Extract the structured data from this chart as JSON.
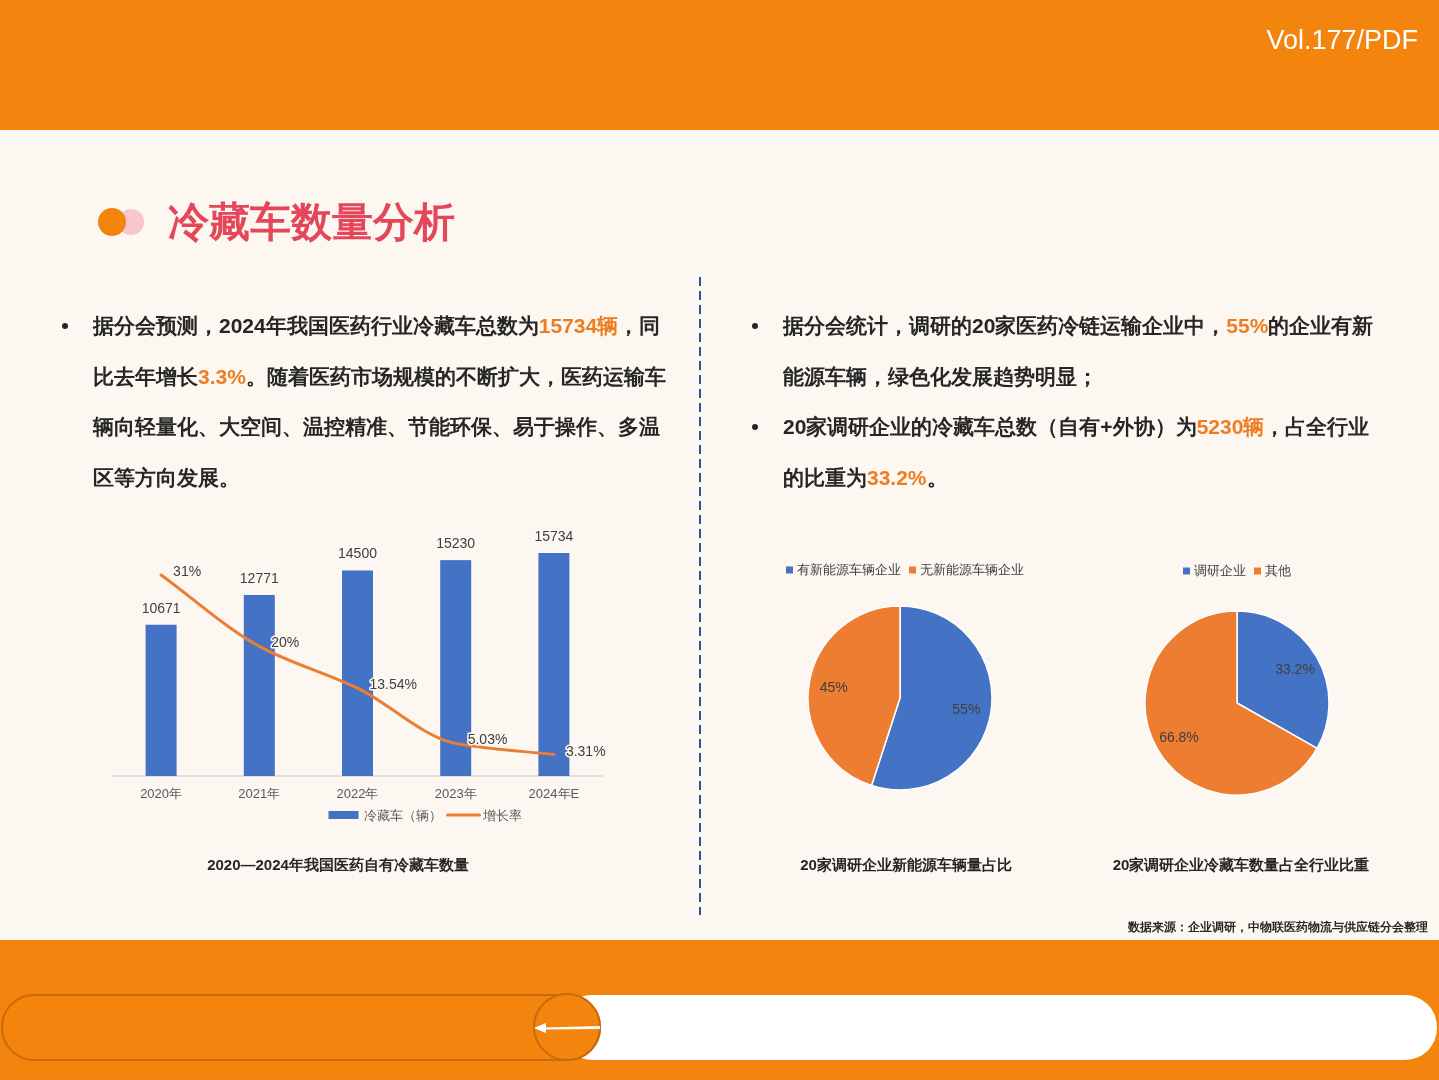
{
  "chart_data": [
    {
      "type": "other",
      "title": "冷藏车数量分析",
      "annotations": [
        "据分会预测，2024年我国医药行业冷藏车总数为**15734辆**，同比去年增长**3.3%**。随着医药市场规模的不断扩大，医药运输车辆向轻量化、大空间、温控精准、节能环保、易于操作、多温区等方向发展。",
        "据分会统计，调研的20家医药冷链运输企业中，**55%**的企业有新能源车辆，绿色化发展趋势明显；",
        "20家调研企业的冷藏车总数（自有+外协）为**5230辆**，占全行业的比重为**33.2%**。",
        "Vol.177/**PDF**",
        "数据来源：企业调研，中物联医药物流与供应链分会整理"
      ]
    },
    {
      "type": "bar",
      "title": "2020—2024年我国医药自有冷藏车数量",
      "categories": [
        "2020年",
        "2021年",
        "2022年",
        "2023年",
        "2024年E"
      ],
      "series": [
        {
          "name": "冷藏车（辆）",
          "color": "#4472c4",
          "values": [
            10671,
            12771,
            14500,
            15230,
            15734
          ]
        },
        {
          "name": "增长率",
          "type": "line",
          "axis": "y2",
          "color": "#ed7d31",
          "values": [
            31,
            20,
            13.54,
            5.03,
            3.31
          ],
          "value_labels": [
            "31%",
            "20%",
            "13.54%",
            "5.03%",
            "3.31%"
          ]
        }
      ],
      "data_labels": true,
      "tick_labels": "x",
      "legend": "bottom"
    },
    {
      "type": "pie",
      "title": "20家调研企业新能源车辆量占比",
      "categories": [
        "有新能源车辆企业",
        "无新能源车辆企业"
      ],
      "values": [
        55,
        45
      ],
      "colors": [
        "#4472c4",
        "#ed7d31"
      ],
      "value_labels": [
        "55%",
        "45%"
      ],
      "legend": "top"
    },
    {
      "type": "pie",
      "title": "20家调研企业冷藏车数量占全行业比重",
      "categories": [
        "调研企业",
        "其他"
      ],
      "values": [
        33.2,
        66.8
      ],
      "colors": [
        "#4472c4",
        "#ed7d31"
      ],
      "value_labels": [
        "33.2%",
        "66.8%"
      ],
      "legend": "top"
    }
  ]
}
